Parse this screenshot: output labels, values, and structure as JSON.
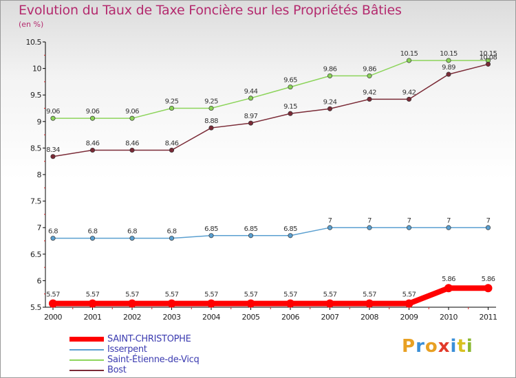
{
  "header": {
    "title": "Evolution du Taux de Taxe Foncière sur les Propriétés Bâties",
    "unit": "(en %)"
  },
  "logo": {
    "text": "Proxiti",
    "colors": [
      "#e8a023",
      "#3a8fd8",
      "#e8a023",
      "#e23a2a",
      "#3a8fd8",
      "#d8c020",
      "#8ab830"
    ]
  },
  "chart_data": {
    "type": "line",
    "title": "Evolution du Taux de Taxe Foncière sur les Propriétés Bâties",
    "ylabel": "(en %)",
    "xlabel": "",
    "x": [
      "2000",
      "2001",
      "2002",
      "2003",
      "2004",
      "2005",
      "2006",
      "2007",
      "2008",
      "2009",
      "2010",
      "2011"
    ],
    "ylim": [
      5.5,
      10.5
    ],
    "yticks": [
      "5.5",
      "6",
      "6.5",
      "7",
      "7.5",
      "8",
      "8.5",
      "9",
      "9.5",
      "10",
      "10.5"
    ],
    "grid": false,
    "legend_position": "bottom-left",
    "series": [
      {
        "name": "SAINT-CHRISTOPHE",
        "color": "#ff0000",
        "values": [
          5.57,
          5.57,
          5.57,
          5.57,
          5.57,
          5.57,
          5.57,
          5.57,
          5.57,
          5.57,
          5.86,
          5.86
        ],
        "labels": [
          "5.57",
          "5.57",
          "5.57",
          "5.57",
          "5.57",
          "5.57",
          "5.57",
          "5.57",
          "5.57",
          "5.57",
          "5.86",
          "5.86"
        ]
      },
      {
        "name": "Isserpent",
        "color": "#5a9fd0",
        "values": [
          6.8,
          6.8,
          6.8,
          6.8,
          6.85,
          6.85,
          6.85,
          7,
          7,
          7,
          7,
          7
        ],
        "labels": [
          "6.8",
          "6.8",
          "6.8",
          "6.8",
          "6.85",
          "6.85",
          "6.85",
          "7",
          "7",
          "7",
          "7",
          "7"
        ]
      },
      {
        "name": "Saint-Étienne-de-Vicq",
        "color": "#8cd45a",
        "values": [
          9.06,
          9.06,
          9.06,
          9.25,
          9.25,
          9.44,
          9.65,
          9.86,
          9.86,
          10.15,
          10.15,
          10.15
        ],
        "labels": [
          "9.06",
          "9.06",
          "9.06",
          "9.25",
          "9.25",
          "9.44",
          "9.65",
          "9.86",
          "9.86",
          "10.15",
          "10.15",
          "10.15"
        ]
      },
      {
        "name": "Bost",
        "color": "#7a2a36",
        "values": [
          8.34,
          8.46,
          8.46,
          8.46,
          8.88,
          8.97,
          9.15,
          9.24,
          9.42,
          9.42,
          9.89,
          10.08
        ],
        "labels": [
          "8.34",
          "8.46",
          "8.46",
          "8.46",
          "8.88",
          "8.97",
          "9.15",
          "9.24",
          "9.42",
          "9.42",
          "9.89",
          "10.08"
        ]
      }
    ]
  }
}
